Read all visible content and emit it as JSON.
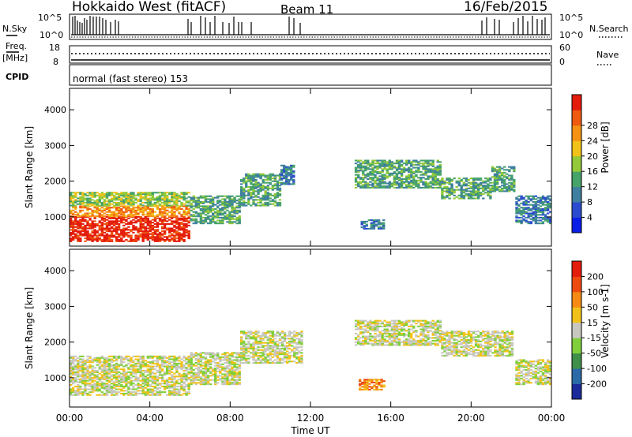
{
  "header": {
    "station": "Hokkaido West (fitACF)",
    "beam": "Beam 11",
    "date": "16/Feb/2015"
  },
  "status_panels": {
    "nsky_label": "N.Sky",
    "nsky_ticks": [
      "10^5",
      "10^0"
    ],
    "nsearch_label": "N.Search",
    "nsearch_ticks": [
      "10^5",
      "10^0"
    ],
    "freq_label_line1": "Freq.",
    "freq_label_line2": "[MHz]",
    "freq_ticks": [
      "18",
      "8"
    ],
    "nave_label": "Nave",
    "nave_ticks": [
      "60",
      "0"
    ],
    "cpid_label": "CPID",
    "cpid_text": "normal (fast stereo) 153"
  },
  "chart_data": [
    {
      "type": "heatmap",
      "name": "power",
      "ylabel": "Slant Range [km]",
      "yticks": [
        1000,
        2000,
        3000,
        4000
      ],
      "ylim": [
        180,
        4600
      ],
      "xlim_hours": [
        0,
        24
      ],
      "colorbar": {
        "label": "Power [dB]",
        "ticks": [
          "4",
          "8",
          "12",
          "16",
          "20",
          "24",
          "28"
        ],
        "colors": [
          "#0a1ee6",
          "#2a4bd0",
          "#3f7fa0",
          "#46a36a",
          "#93c93a",
          "#f0c21a",
          "#f59214",
          "#ee5a10",
          "#e41c0c"
        ]
      },
      "bands": [
        {
          "t0": 0.0,
          "t1": 6.0,
          "r0": 300,
          "r1": 1000,
          "level": 8
        },
        {
          "t0": 0.0,
          "t1": 6.0,
          "r0": 1000,
          "r1": 1300,
          "level": 6
        },
        {
          "t0": 0.0,
          "t1": 6.0,
          "r0": 1300,
          "r1": 1700,
          "level": 4
        },
        {
          "t0": 6.0,
          "t1": 8.5,
          "r0": 800,
          "r1": 1600,
          "level": 3
        },
        {
          "t0": 8.5,
          "t1": 10.5,
          "r0": 1300,
          "r1": 2200,
          "level": 3
        },
        {
          "t0": 10.5,
          "t1": 11.2,
          "r0": 1900,
          "r1": 2500,
          "level": 2
        },
        {
          "t0": 14.2,
          "t1": 18.5,
          "r0": 1800,
          "r1": 2600,
          "level": 3
        },
        {
          "t0": 18.5,
          "t1": 21.0,
          "r0": 1500,
          "r1": 2100,
          "level": 3
        },
        {
          "t0": 21.0,
          "t1": 22.2,
          "r0": 1700,
          "r1": 2400,
          "level": 3
        },
        {
          "t0": 22.2,
          "t1": 24.0,
          "r0": 800,
          "r1": 1600,
          "level": 2
        },
        {
          "t0": 14.5,
          "t1": 15.6,
          "r0": 650,
          "r1": 900,
          "level": 2
        }
      ]
    },
    {
      "type": "heatmap",
      "name": "velocity",
      "ylabel": "Slant Range [km]",
      "yticks": [
        1000,
        2000,
        3000,
        4000
      ],
      "ylim": [
        180,
        4600
      ],
      "xlim_hours": [
        0,
        24
      ],
      "xticks": [
        "00:00",
        "04:00",
        "08:00",
        "12:00",
        "16:00",
        "20:00",
        "00:00"
      ],
      "xlabel": "Time UT",
      "colorbar": {
        "label": "Velocity [m s-1]",
        "ticks": [
          "200",
          "100",
          "50",
          "15",
          "-15",
          "-50",
          "-100",
          "-200"
        ],
        "colors": [
          "#1a2a9a",
          "#2a6aa8",
          "#3f8f4a",
          "#7fd03a",
          "#c8c8c0",
          "#f2c21a",
          "#f58a14",
          "#ee4a10",
          "#e41c0c"
        ]
      },
      "bands": [
        {
          "t0": 0.0,
          "t1": 6.0,
          "r0": 500,
          "r1": 1600,
          "level": 4
        },
        {
          "t0": 6.0,
          "t1": 8.5,
          "r0": 800,
          "r1": 1700,
          "level": 4
        },
        {
          "t0": 8.5,
          "t1": 11.5,
          "r0": 1400,
          "r1": 2300,
          "level": 4
        },
        {
          "t0": 14.2,
          "t1": 18.5,
          "r0": 1900,
          "r1": 2600,
          "level": 4
        },
        {
          "t0": 18.5,
          "t1": 22.0,
          "r0": 1600,
          "r1": 2300,
          "level": 4
        },
        {
          "t0": 22.2,
          "t1": 24.0,
          "r0": 800,
          "r1": 1500,
          "level": 4
        },
        {
          "t0": 14.4,
          "t1": 15.6,
          "r0": 650,
          "r1": 950,
          "level": 6
        }
      ]
    }
  ]
}
